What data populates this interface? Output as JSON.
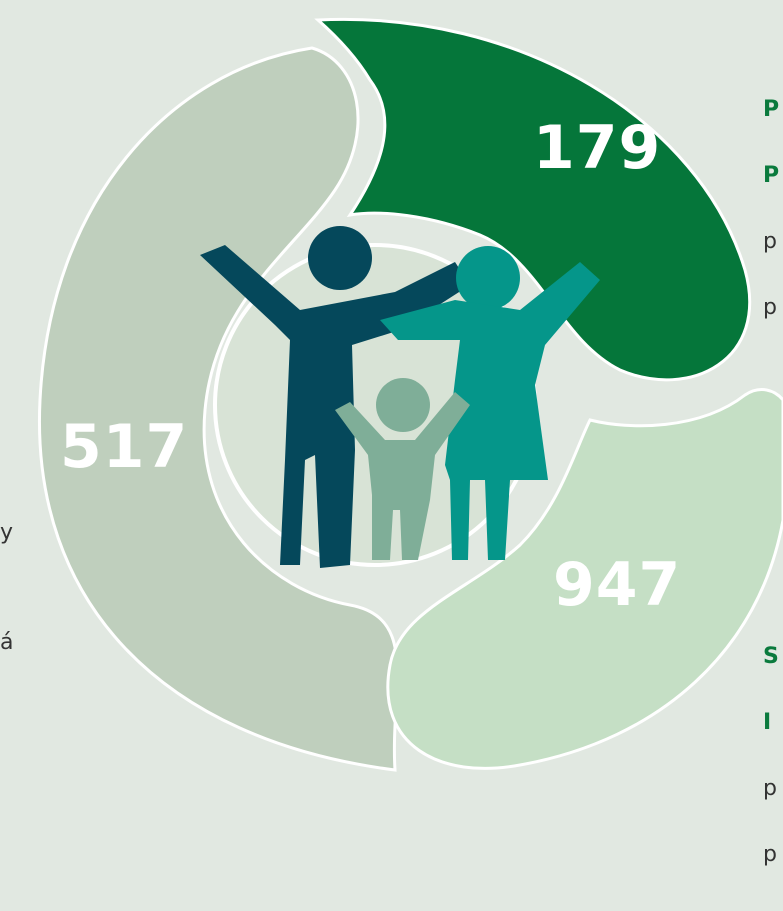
{
  "segments": {
    "top": {
      "value": "179",
      "color": "#05763a"
    },
    "left": {
      "value": "517",
      "color": "#bfcfbd"
    },
    "right": {
      "value": "947",
      "color": "#c5dfc5"
    }
  },
  "center_color": "#d8e3d6",
  "family_colors": {
    "adult_1": "#05485b",
    "adult_2": "#05968a",
    "child": "#7fae98"
  },
  "right_top_text": {
    "bold_line_1": "P",
    "bold_line_2": "P",
    "line_3": "p",
    "line_4": "p"
  },
  "right_bottom_text": {
    "bold_line_1": "S",
    "bold_line_2": "I",
    "line_3": "p",
    "line_4": "p"
  },
  "left_text": {
    "fragment_1": "y",
    "fragment_2": "á"
  }
}
